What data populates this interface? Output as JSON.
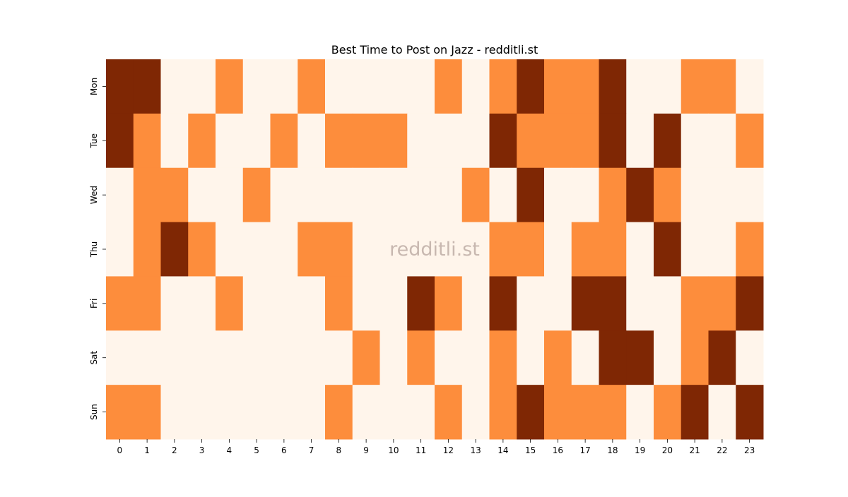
{
  "chart_data": {
    "type": "heatmap",
    "title": "Best Time to Post on Jazz - redditli.st",
    "watermark": "redditli.st",
    "xlabel": "",
    "ylabel": "",
    "x_categories": [
      "0",
      "1",
      "2",
      "3",
      "4",
      "5",
      "6",
      "7",
      "8",
      "9",
      "10",
      "11",
      "12",
      "13",
      "14",
      "15",
      "16",
      "17",
      "18",
      "19",
      "20",
      "21",
      "22",
      "23"
    ],
    "y_categories": [
      "Mon",
      "Tue",
      "Wed",
      "Thu",
      "Fri",
      "Sat",
      "Sun"
    ],
    "levels_note": "0 = low, 1 = medium, 2 = high",
    "colors": [
      "#fff5eb",
      "#fd8d3c",
      "#7f2704"
    ],
    "watermark_color": "#c8b8b0",
    "colorbar": false,
    "values": [
      [
        2,
        2,
        0,
        0,
        1,
        0,
        0,
        1,
        0,
        0,
        0,
        0,
        1,
        0,
        1,
        2,
        1,
        1,
        2,
        0,
        0,
        1,
        1,
        0
      ],
      [
        2,
        1,
        0,
        1,
        0,
        0,
        1,
        0,
        1,
        1,
        1,
        0,
        0,
        0,
        2,
        1,
        1,
        1,
        2,
        0,
        2,
        0,
        0,
        1
      ],
      [
        0,
        1,
        1,
        0,
        0,
        1,
        0,
        0,
        0,
        0,
        0,
        0,
        0,
        1,
        0,
        2,
        0,
        0,
        1,
        2,
        1,
        0,
        0,
        0
      ],
      [
        0,
        1,
        2,
        1,
        0,
        0,
        0,
        1,
        1,
        0,
        0,
        0,
        0,
        0,
        1,
        1,
        0,
        1,
        1,
        0,
        2,
        0,
        0,
        1
      ],
      [
        1,
        1,
        0,
        0,
        1,
        0,
        0,
        0,
        1,
        0,
        0,
        2,
        1,
        0,
        2,
        0,
        0,
        2,
        2,
        0,
        0,
        1,
        1,
        2
      ],
      [
        0,
        0,
        0,
        0,
        0,
        0,
        0,
        0,
        0,
        1,
        0,
        1,
        0,
        0,
        1,
        0,
        1,
        0,
        2,
        2,
        0,
        1,
        2,
        0
      ],
      [
        1,
        1,
        0,
        0,
        0,
        0,
        0,
        0,
        1,
        0,
        0,
        0,
        1,
        0,
        1,
        2,
        1,
        1,
        1,
        0,
        1,
        2,
        0,
        2
      ]
    ]
  }
}
